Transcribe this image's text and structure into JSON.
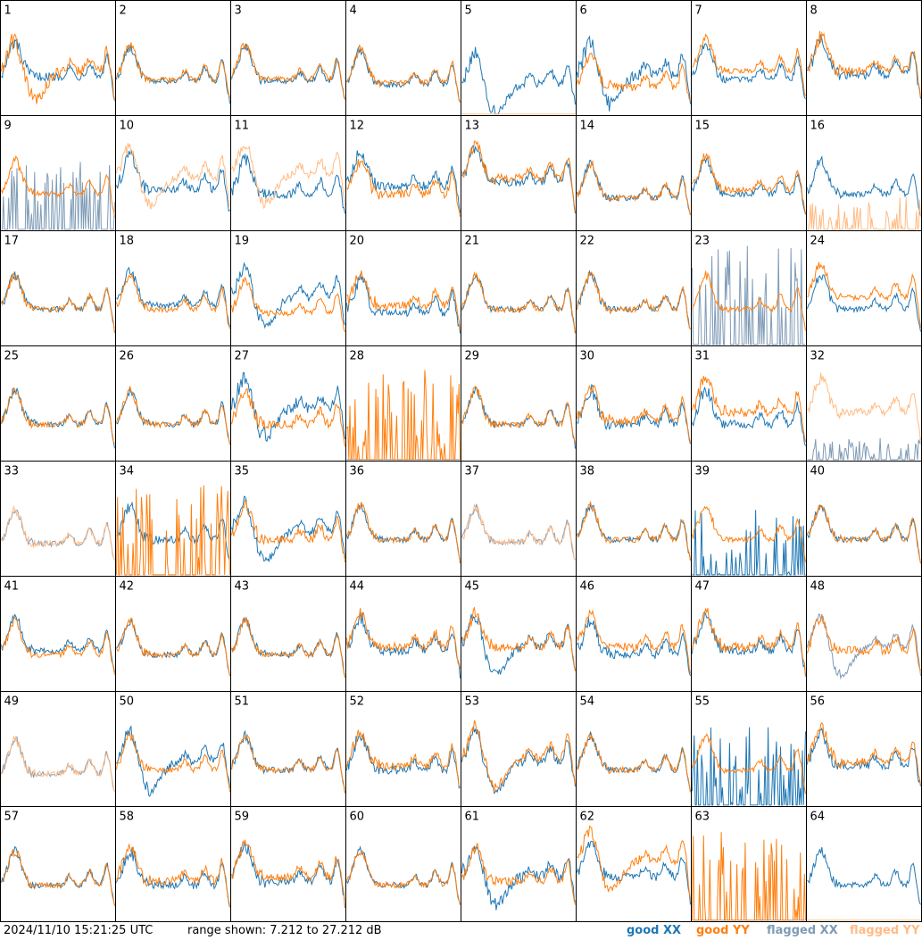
{
  "footer": {
    "timestamp": "2024/11/10 15:21:25 UTC",
    "range_text": "range shown: 7.212 to 27.212 dB"
  },
  "legend": {
    "good_xx": "good XX",
    "good_yy": "good YY",
    "flagged_xx": "flagged XX",
    "flagged_yy": "flagged YY"
  },
  "colors": {
    "good_xx": "#1f77b4",
    "good_yy": "#ff7f0e",
    "flagged_xx": "#7f9bb6",
    "flagged_yy": "#ffbb85",
    "grid": "#000000"
  },
  "chart_data": {
    "type": "line",
    "rows": 8,
    "cols": 8,
    "ylim": [
      7.212,
      27.212
    ],
    "xlim": [
      0,
      1
    ],
    "panels": [
      {
        "id": "1",
        "xx": {
          "s": "good",
          "shape": "std",
          "level": 0.48,
          "noise": 0.3
        },
        "yy": {
          "s": "good",
          "shape": "dip",
          "level": 0.55,
          "noise": 0.4
        }
      },
      {
        "id": "2",
        "xx": {
          "s": "good",
          "shape": "std",
          "level": 0.42,
          "noise": 0.2
        },
        "yy": {
          "s": "good",
          "shape": "std",
          "level": 0.44,
          "noise": 0.2
        }
      },
      {
        "id": "3",
        "xx": {
          "s": "good",
          "shape": "std",
          "level": 0.42,
          "noise": 0.2
        },
        "yy": {
          "s": "good",
          "shape": "std",
          "level": 0.45,
          "noise": 0.2
        }
      },
      {
        "id": "4",
        "xx": {
          "s": "good",
          "shape": "std",
          "level": 0.38,
          "noise": 0.2
        },
        "yy": {
          "s": "good",
          "shape": "std",
          "level": 0.4,
          "noise": 0.2
        }
      },
      {
        "id": "5",
        "xx": {
          "s": "good",
          "shape": "dip",
          "level": 0.38,
          "noise": 0.3
        },
        "yy": {
          "s": "flagged",
          "shape": "zero",
          "level": 0.0,
          "noise": 0.0
        }
      },
      {
        "id": "6",
        "xx": {
          "s": "good",
          "shape": "dip",
          "level": 0.5,
          "noise": 0.4
        },
        "yy": {
          "s": "good",
          "shape": "std",
          "level": 0.35,
          "noise": 0.3
        }
      },
      {
        "id": "7",
        "xx": {
          "s": "good",
          "shape": "std",
          "level": 0.45,
          "noise": 0.2
        },
        "yy": {
          "s": "good",
          "shape": "std",
          "level": 0.55,
          "noise": 0.2
        }
      },
      {
        "id": "8",
        "xx": {
          "s": "good",
          "shape": "std",
          "level": 0.5,
          "noise": 0.3
        },
        "yy": {
          "s": "good",
          "shape": "std",
          "level": 0.55,
          "noise": 0.3
        }
      },
      {
        "id": "9",
        "xx": {
          "s": "flagged",
          "shape": "spikes",
          "level": 0.1,
          "noise": 0.5
        },
        "yy": {
          "s": "good",
          "shape": "std",
          "level": 0.45,
          "noise": 0.2
        }
      },
      {
        "id": "10",
        "xx": {
          "s": "good",
          "shape": "std",
          "level": 0.5,
          "noise": 0.3
        },
        "yy": {
          "s": "flagged",
          "shape": "dip",
          "level": 0.65,
          "noise": 0.3
        }
      },
      {
        "id": "11",
        "xx": {
          "s": "good",
          "shape": "std",
          "level": 0.45,
          "noise": 0.3
        },
        "yy": {
          "s": "flagged",
          "shape": "dip",
          "level": 0.7,
          "noise": 0.3
        }
      },
      {
        "id": "12",
        "xx": {
          "s": "good",
          "shape": "std",
          "level": 0.55,
          "noise": 0.3
        },
        "yy": {
          "s": "good",
          "shape": "std",
          "level": 0.45,
          "noise": 0.3
        }
      },
      {
        "id": "13",
        "xx": {
          "s": "good",
          "shape": "std",
          "level": 0.6,
          "noise": 0.3
        },
        "yy": {
          "s": "good",
          "shape": "std",
          "level": 0.65,
          "noise": 0.3
        }
      },
      {
        "id": "14",
        "xx": {
          "s": "good",
          "shape": "std",
          "level": 0.4,
          "noise": 0.2
        },
        "yy": {
          "s": "good",
          "shape": "std",
          "level": 0.4,
          "noise": 0.2
        }
      },
      {
        "id": "15",
        "xx": {
          "s": "good",
          "shape": "std",
          "level": 0.45,
          "noise": 0.2
        },
        "yy": {
          "s": "good",
          "shape": "std",
          "level": 0.5,
          "noise": 0.2
        }
      },
      {
        "id": "16",
        "xx": {
          "s": "good",
          "shape": "std",
          "level": 0.45,
          "noise": 0.2
        },
        "yy": {
          "s": "flagged",
          "shape": "spikes",
          "level": 0.0,
          "noise": 0.3
        }
      },
      {
        "id": "17",
        "xx": {
          "s": "good",
          "shape": "std",
          "level": 0.45,
          "noise": 0.2
        },
        "yy": {
          "s": "good",
          "shape": "std",
          "level": 0.45,
          "noise": 0.2
        }
      },
      {
        "id": "18",
        "xx": {
          "s": "good",
          "shape": "std",
          "level": 0.5,
          "noise": 0.2
        },
        "yy": {
          "s": "good",
          "shape": "std",
          "level": 0.45,
          "noise": 0.2
        }
      },
      {
        "id": "19",
        "xx": {
          "s": "good",
          "shape": "dip",
          "level": 0.6,
          "noise": 0.3
        },
        "yy": {
          "s": "good",
          "shape": "std",
          "level": 0.4,
          "noise": 0.2
        }
      },
      {
        "id": "20",
        "xx": {
          "s": "good",
          "shape": "std",
          "level": 0.4,
          "noise": 0.3
        },
        "yy": {
          "s": "good",
          "shape": "std",
          "level": 0.5,
          "noise": 0.3
        }
      },
      {
        "id": "21",
        "xx": {
          "s": "good",
          "shape": "std",
          "level": 0.45,
          "noise": 0.2
        },
        "yy": {
          "s": "good",
          "shape": "std",
          "level": 0.45,
          "noise": 0.2
        }
      },
      {
        "id": "22",
        "xx": {
          "s": "good",
          "shape": "std",
          "level": 0.45,
          "noise": 0.2
        },
        "yy": {
          "s": "good",
          "shape": "std",
          "level": 0.45,
          "noise": 0.2
        }
      },
      {
        "id": "23",
        "xx": {
          "s": "flagged",
          "shape": "spikes",
          "level": 0.3,
          "noise": 0.6
        },
        "yy": {
          "s": "good",
          "shape": "std",
          "level": 0.45,
          "noise": 0.2
        }
      },
      {
        "id": "24",
        "xx": {
          "s": "good",
          "shape": "std",
          "level": 0.45,
          "noise": 0.2
        },
        "yy": {
          "s": "good",
          "shape": "std",
          "level": 0.6,
          "noise": 0.2
        }
      },
      {
        "id": "25",
        "xx": {
          "s": "good",
          "shape": "std",
          "level": 0.45,
          "noise": 0.2
        },
        "yy": {
          "s": "good",
          "shape": "std",
          "level": 0.45,
          "noise": 0.2
        }
      },
      {
        "id": "26",
        "xx": {
          "s": "good",
          "shape": "std",
          "level": 0.45,
          "noise": 0.2
        },
        "yy": {
          "s": "good",
          "shape": "std",
          "level": 0.45,
          "noise": 0.2
        }
      },
      {
        "id": "27",
        "xx": {
          "s": "good",
          "shape": "dip",
          "level": 0.65,
          "noise": 0.4
        },
        "yy": {
          "s": "good",
          "shape": "std",
          "level": 0.45,
          "noise": 0.3
        }
      },
      {
        "id": "28",
        "xx": {
          "s": "flagged",
          "shape": "zero",
          "level": 0.0,
          "noise": 0.0
        },
        "yy": {
          "s": "good",
          "shape": "spikes",
          "level": 0.1,
          "noise": 0.7
        }
      },
      {
        "id": "29",
        "xx": {
          "s": "good",
          "shape": "std",
          "level": 0.45,
          "noise": 0.2
        },
        "yy": {
          "s": "good",
          "shape": "std",
          "level": 0.45,
          "noise": 0.2
        }
      },
      {
        "id": "30",
        "xx": {
          "s": "good",
          "shape": "std",
          "level": 0.45,
          "noise": 0.3
        },
        "yy": {
          "s": "good",
          "shape": "std",
          "level": 0.5,
          "noise": 0.3
        }
      },
      {
        "id": "31",
        "xx": {
          "s": "good",
          "shape": "std",
          "level": 0.45,
          "noise": 0.3
        },
        "yy": {
          "s": "good",
          "shape": "std",
          "level": 0.6,
          "noise": 0.3
        }
      },
      {
        "id": "32",
        "xx": {
          "s": "flagged",
          "shape": "spikes",
          "level": 0.0,
          "noise": 0.2
        },
        "yy": {
          "s": "flagged",
          "shape": "std",
          "level": 0.6,
          "noise": 0.3
        }
      },
      {
        "id": "33",
        "xx": {
          "s": "flagged",
          "shape": "std",
          "level": 0.4,
          "noise": 0.2
        },
        "yy": {
          "s": "flagged",
          "shape": "std",
          "level": 0.4,
          "noise": 0.2
        }
      },
      {
        "id": "34",
        "xx": {
          "s": "good",
          "shape": "std",
          "level": 0.45,
          "noise": 0.3
        },
        "yy": {
          "s": "good",
          "shape": "spikes",
          "level": 0.1,
          "noise": 0.7
        }
      },
      {
        "id": "35",
        "xx": {
          "s": "good",
          "shape": "dip",
          "level": 0.55,
          "noise": 0.3
        },
        "yy": {
          "s": "good",
          "shape": "std",
          "level": 0.45,
          "noise": 0.3
        }
      },
      {
        "id": "36",
        "xx": {
          "s": "good",
          "shape": "std",
          "level": 0.45,
          "noise": 0.2
        },
        "yy": {
          "s": "good",
          "shape": "std",
          "level": 0.45,
          "noise": 0.2
        }
      },
      {
        "id": "37",
        "xx": {
          "s": "flagged",
          "shape": "std",
          "level": 0.42,
          "noise": 0.2
        },
        "yy": {
          "s": "flagged",
          "shape": "std",
          "level": 0.42,
          "noise": 0.2
        }
      },
      {
        "id": "38",
        "xx": {
          "s": "good",
          "shape": "std",
          "level": 0.45,
          "noise": 0.2
        },
        "yy": {
          "s": "good",
          "shape": "std",
          "level": 0.45,
          "noise": 0.2
        }
      },
      {
        "id": "39",
        "xx": {
          "s": "good",
          "shape": "spikes",
          "level": 0.0,
          "noise": 0.6
        },
        "yy": {
          "s": "good",
          "shape": "std",
          "level": 0.45,
          "noise": 0.2
        }
      },
      {
        "id": "40",
        "xx": {
          "s": "good",
          "shape": "std",
          "level": 0.45,
          "noise": 0.2
        },
        "yy": {
          "s": "good",
          "shape": "std",
          "level": 0.45,
          "noise": 0.2
        }
      },
      {
        "id": "41",
        "xx": {
          "s": "good",
          "shape": "std",
          "level": 0.5,
          "noise": 0.2
        },
        "yy": {
          "s": "good",
          "shape": "std",
          "level": 0.45,
          "noise": 0.2
        }
      },
      {
        "id": "42",
        "xx": {
          "s": "good",
          "shape": "std",
          "level": 0.45,
          "noise": 0.2
        },
        "yy": {
          "s": "good",
          "shape": "std",
          "level": 0.45,
          "noise": 0.2
        }
      },
      {
        "id": "43",
        "xx": {
          "s": "good",
          "shape": "std",
          "level": 0.45,
          "noise": 0.2
        },
        "yy": {
          "s": "good",
          "shape": "std",
          "level": 0.45,
          "noise": 0.2
        }
      },
      {
        "id": "44",
        "xx": {
          "s": "good",
          "shape": "std",
          "level": 0.5,
          "noise": 0.3
        },
        "yy": {
          "s": "good",
          "shape": "std",
          "level": 0.55,
          "noise": 0.3
        }
      },
      {
        "id": "45",
        "xx": {
          "s": "good",
          "shape": "dip",
          "level": 0.55,
          "noise": 0.3
        },
        "yy": {
          "s": "good",
          "shape": "std",
          "level": 0.55,
          "noise": 0.3
        }
      },
      {
        "id": "46",
        "xx": {
          "s": "good",
          "shape": "std",
          "level": 0.45,
          "noise": 0.3
        },
        "yy": {
          "s": "good",
          "shape": "std",
          "level": 0.55,
          "noise": 0.3
        }
      },
      {
        "id": "47",
        "xx": {
          "s": "good",
          "shape": "std",
          "level": 0.5,
          "noise": 0.3
        },
        "yy": {
          "s": "good",
          "shape": "std",
          "level": 0.55,
          "noise": 0.3
        }
      },
      {
        "id": "48",
        "xx": {
          "s": "flagged",
          "shape": "dip",
          "level": 0.55,
          "noise": 0.2
        },
        "yy": {
          "s": "good",
          "shape": "std",
          "level": 0.5,
          "noise": 0.3
        }
      },
      {
        "id": "49",
        "xx": {
          "s": "flagged",
          "shape": "std",
          "level": 0.4,
          "noise": 0.2
        },
        "yy": {
          "s": "flagged",
          "shape": "std",
          "level": 0.4,
          "noise": 0.2
        }
      },
      {
        "id": "50",
        "xx": {
          "s": "good",
          "shape": "dip",
          "level": 0.55,
          "noise": 0.3
        },
        "yy": {
          "s": "good",
          "shape": "std",
          "level": 0.45,
          "noise": 0.2
        }
      },
      {
        "id": "51",
        "xx": {
          "s": "good",
          "shape": "std",
          "level": 0.45,
          "noise": 0.2
        },
        "yy": {
          "s": "good",
          "shape": "std",
          "level": 0.45,
          "noise": 0.2
        }
      },
      {
        "id": "52",
        "xx": {
          "s": "good",
          "shape": "std",
          "level": 0.45,
          "noise": 0.3
        },
        "yy": {
          "s": "good",
          "shape": "std",
          "level": 0.5,
          "noise": 0.3
        }
      },
      {
        "id": "53",
        "xx": {
          "s": "good",
          "shape": "dip",
          "level": 0.55,
          "noise": 0.3
        },
        "yy": {
          "s": "good",
          "shape": "dip",
          "level": 0.6,
          "noise": 0.3
        }
      },
      {
        "id": "54",
        "xx": {
          "s": "good",
          "shape": "std",
          "level": 0.45,
          "noise": 0.2
        },
        "yy": {
          "s": "good",
          "shape": "std",
          "level": 0.45,
          "noise": 0.2
        }
      },
      {
        "id": "55",
        "xx": {
          "s": "good",
          "shape": "spikes",
          "level": 0.0,
          "noise": 0.7
        },
        "yy": {
          "s": "good",
          "shape": "std",
          "level": 0.45,
          "noise": 0.2
        }
      },
      {
        "id": "56",
        "xx": {
          "s": "good",
          "shape": "std",
          "level": 0.5,
          "noise": 0.3
        },
        "yy": {
          "s": "good",
          "shape": "std",
          "level": 0.55,
          "noise": 0.3
        }
      },
      {
        "id": "57",
        "xx": {
          "s": "good",
          "shape": "std",
          "level": 0.45,
          "noise": 0.2
        },
        "yy": {
          "s": "good",
          "shape": "std",
          "level": 0.45,
          "noise": 0.2
        }
      },
      {
        "id": "58",
        "xx": {
          "s": "good",
          "shape": "std",
          "level": 0.45,
          "noise": 0.3
        },
        "yy": {
          "s": "good",
          "shape": "std",
          "level": 0.5,
          "noise": 0.3
        }
      },
      {
        "id": "59",
        "xx": {
          "s": "good",
          "shape": "std",
          "level": 0.5,
          "noise": 0.3
        },
        "yy": {
          "s": "good",
          "shape": "std",
          "level": 0.55,
          "noise": 0.3
        }
      },
      {
        "id": "60",
        "xx": {
          "s": "good",
          "shape": "std",
          "level": 0.45,
          "noise": 0.2
        },
        "yy": {
          "s": "good",
          "shape": "std",
          "level": 0.45,
          "noise": 0.2
        }
      },
      {
        "id": "61",
        "xx": {
          "s": "good",
          "shape": "dip",
          "level": 0.55,
          "noise": 0.4
        },
        "yy": {
          "s": "good",
          "shape": "std",
          "level": 0.5,
          "noise": 0.3
        }
      },
      {
        "id": "62",
        "xx": {
          "s": "good",
          "shape": "std",
          "level": 0.55,
          "noise": 0.3
        },
        "yy": {
          "s": "good",
          "shape": "dip",
          "level": 0.75,
          "noise": 0.3
        }
      },
      {
        "id": "63",
        "xx": {
          "s": "flagged",
          "shape": "zero",
          "level": 0.0,
          "noise": 0.0
        },
        "yy": {
          "s": "good",
          "shape": "spikes",
          "level": 0.1,
          "noise": 0.7
        }
      },
      {
        "id": "64",
        "xx": {
          "s": "good",
          "shape": "std",
          "level": 0.45,
          "noise": 0.2
        },
        "yy": {
          "s": "flagged",
          "shape": "zero",
          "level": 0.0,
          "noise": 0.0
        }
      }
    ]
  }
}
